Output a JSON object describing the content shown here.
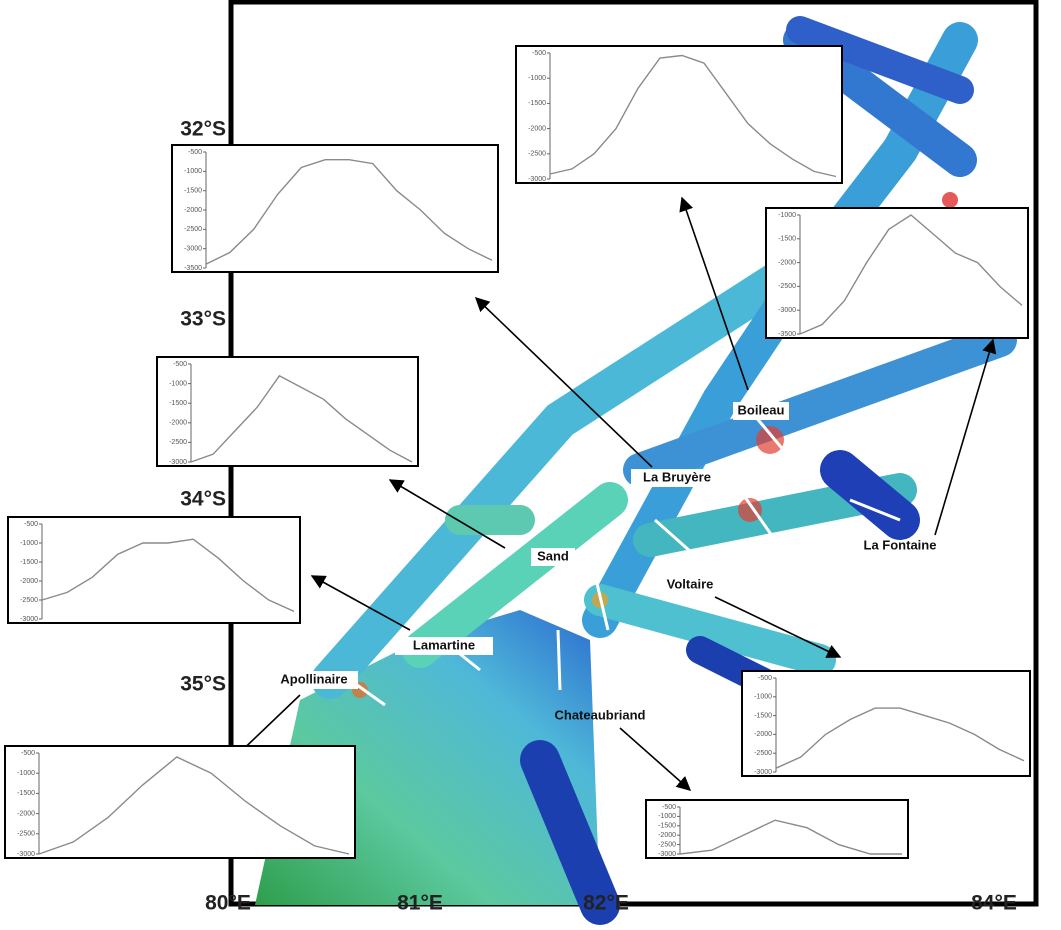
{
  "latitude_labels": [
    "32°S",
    "33°S",
    "34°S",
    "35°S"
  ],
  "longitude_labels": [
    "80°E",
    "81°E",
    "82°E",
    "84°E"
  ],
  "seamounts": [
    "Boileau",
    "La Bruyère",
    "Sand",
    "Voltaire",
    "La Fontaine",
    "Lamartine",
    "Apollinaire",
    "Chateaubriand"
  ],
  "profiles": [
    {
      "ylim": [
        -3000,
        -500
      ],
      "yticks": [
        -500,
        -1000,
        -1500,
        -2000,
        -2500,
        -3000
      ],
      "depths": [
        -2900,
        -2800,
        -2500,
        -2000,
        -1200,
        -600,
        -550,
        -700,
        -1300,
        -1900,
        -2300,
        -2600,
        -2850,
        -2950
      ]
    },
    {
      "ylim": [
        -3500,
        -500
      ],
      "yticks": [
        -500,
        -1000,
        -1500,
        -2000,
        -2500,
        -3000,
        -3500
      ],
      "depths": [
        -3400,
        -3100,
        -2500,
        -1600,
        -900,
        -700,
        -700,
        -800,
        -1500,
        -2000,
        -2600,
        -3000,
        -3300
      ]
    },
    {
      "ylim": [
        -3500,
        -1000
      ],
      "yticks": [
        -1000,
        -1500,
        -2000,
        -2500,
        -3000,
        -3500
      ],
      "depths": [
        -3500,
        -3300,
        -2800,
        -2000,
        -1300,
        -1000,
        -1400,
        -1800,
        -2000,
        -2500,
        -2900
      ]
    },
    {
      "ylim": [
        -3000,
        -500
      ],
      "yticks": [
        -500,
        -1000,
        -1500,
        -2000,
        -2500,
        -3000
      ],
      "depths": [
        -3000,
        -2800,
        -2200,
        -1600,
        -800,
        -1100,
        -1400,
        -1900,
        -2300,
        -2700,
        -3000
      ]
    },
    {
      "ylim": [
        -3000,
        -500
      ],
      "yticks": [
        -500,
        -1000,
        -1500,
        -2000,
        -2500,
        -3000
      ],
      "depths": [
        -2500,
        -2300,
        -1900,
        -1300,
        -1000,
        -1000,
        -900,
        -1400,
        -2000,
        -2500,
        -2800
      ]
    },
    {
      "ylim": [
        -3000,
        -500
      ],
      "yticks": [
        -500,
        -1000,
        -1500,
        -2000,
        -2500,
        -3000
      ],
      "depths": [
        -2900,
        -2600,
        -2000,
        -1600,
        -1300,
        -1300,
        -1500,
        -1700,
        -2000,
        -2400,
        -2700
      ]
    },
    {
      "ylim": [
        -3000,
        -500
      ],
      "yticks": [
        -500,
        -1000,
        -1500,
        -2000,
        -2500,
        -3000
      ],
      "depths": [
        -3000,
        -2700,
        -2100,
        -1300,
        -600,
        -1000,
        -1700,
        -2300,
        -2800,
        -3000
      ]
    },
    {
      "ylim": [
        -3000,
        -500
      ],
      "yticks": [
        -500,
        -1000,
        -1500,
        -2000,
        -2500,
        -3000
      ],
      "depths": [
        -3000,
        -2800,
        -2000,
        -1200,
        -1600,
        -2500,
        -3000,
        -3000
      ]
    }
  ]
}
